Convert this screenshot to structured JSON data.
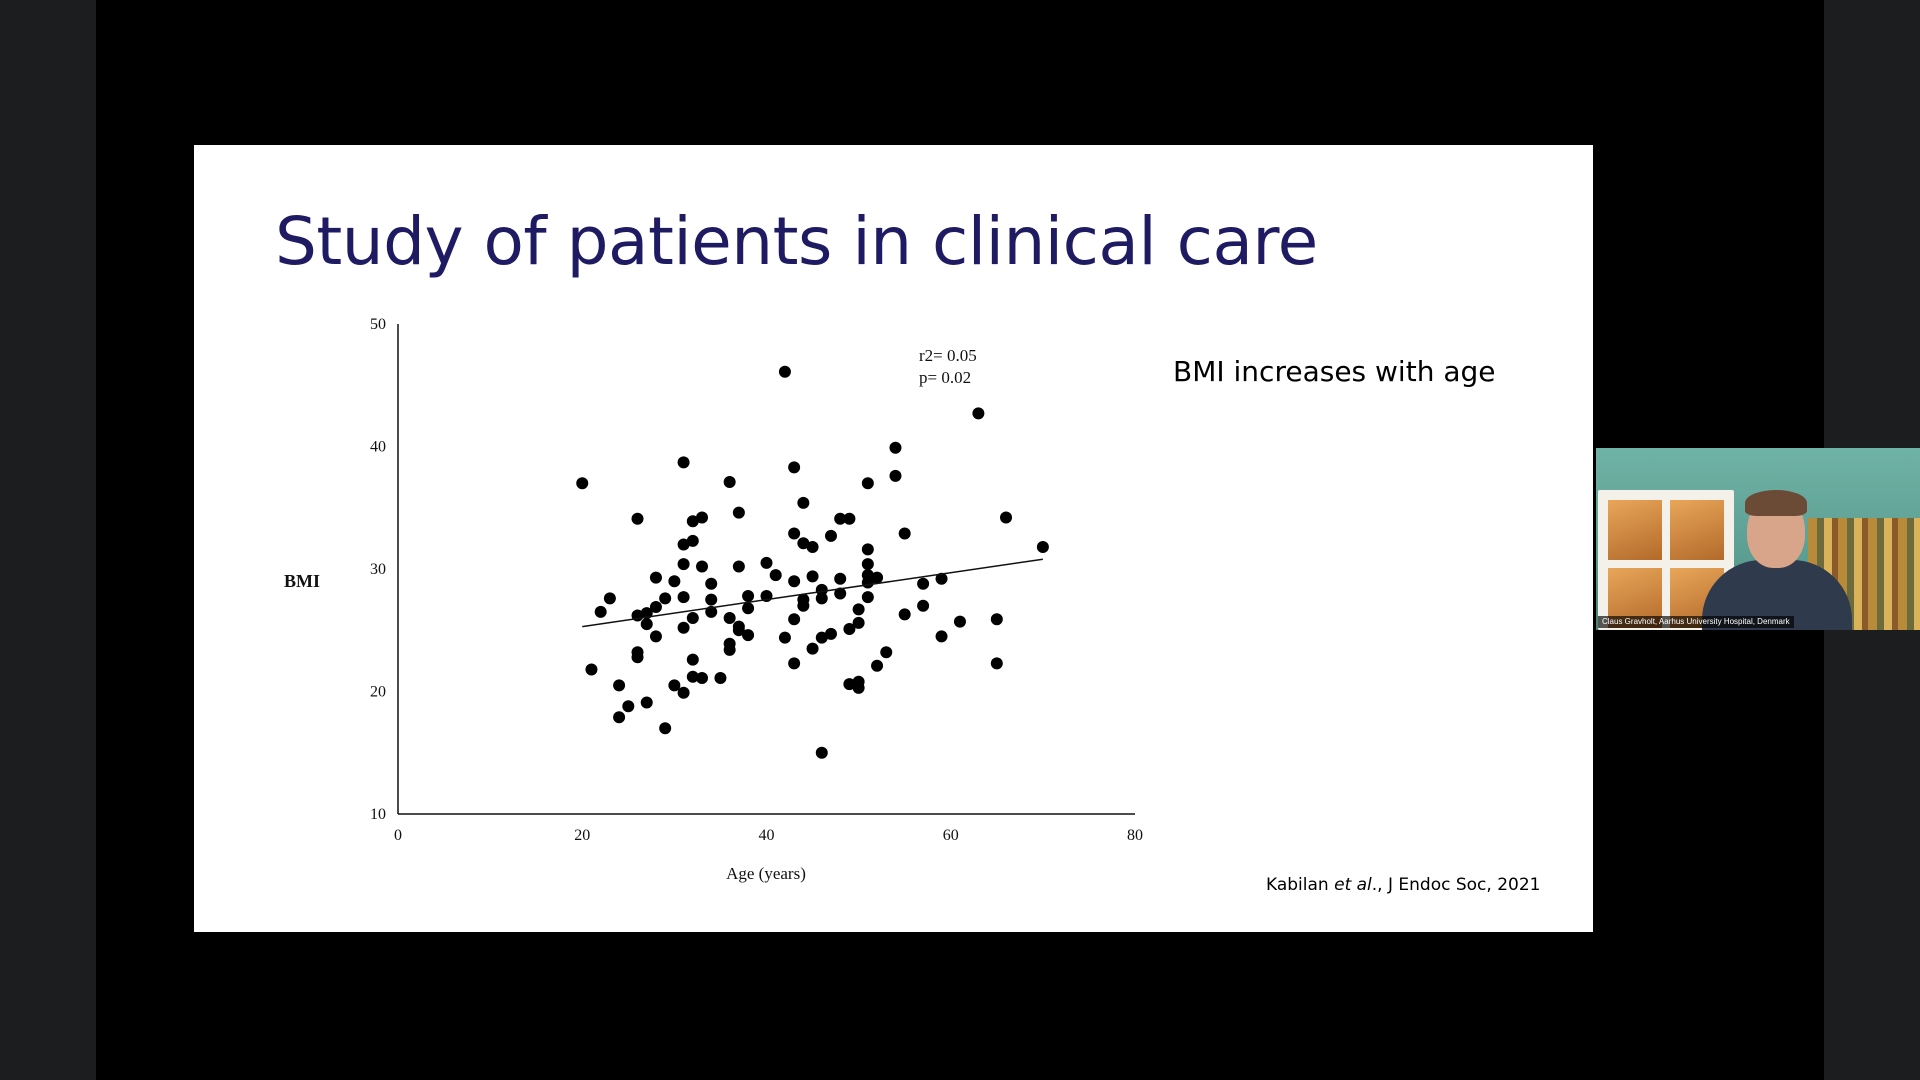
{
  "slide": {
    "title": "Study of patients in clinical care",
    "note": "BMI increases with age",
    "citation": {
      "author": "Kabilan ",
      "etal": "et al",
      "rest": "., J Endoc Soc, 2021"
    }
  },
  "chart_data": {
    "type": "scatter",
    "title": "",
    "xlabel": "Age (years)",
    "ylabel": "BMI",
    "xlim": [
      0,
      80
    ],
    "ylim": [
      10,
      50
    ],
    "xticks": [
      "0",
      "20",
      "40",
      "60",
      "80"
    ],
    "yticks": [
      "10",
      "20",
      "30",
      "40",
      "50"
    ],
    "grid": false,
    "annotations": [
      "r2= 0.05",
      "p= 0.02"
    ],
    "trendline": {
      "x": [
        20,
        70
      ],
      "y": [
        25.3,
        30.8
      ]
    },
    "points": [
      [
        20,
        37
      ],
      [
        21,
        21.8
      ],
      [
        22,
        26.5
      ],
      [
        23,
        27.6
      ],
      [
        24,
        17.9
      ],
      [
        24,
        20.5
      ],
      [
        25,
        18.8
      ],
      [
        26,
        34.1
      ],
      [
        26,
        22.8
      ],
      [
        26,
        23.2
      ],
      [
        26,
        26.2
      ],
      [
        27,
        26.4
      ],
      [
        27,
        25.5
      ],
      [
        27,
        19.1
      ],
      [
        28,
        29.3
      ],
      [
        28,
        26.9
      ],
      [
        28,
        24.5
      ],
      [
        29,
        17
      ],
      [
        29,
        27.6
      ],
      [
        30,
        29
      ],
      [
        30,
        20.5
      ],
      [
        31,
        38.7
      ],
      [
        31,
        32
      ],
      [
        31,
        30.4
      ],
      [
        31,
        27.7
      ],
      [
        31,
        25.2
      ],
      [
        31,
        19.9
      ],
      [
        32,
        33.9
      ],
      [
        32,
        32.3
      ],
      [
        32,
        26
      ],
      [
        32,
        22.6
      ],
      [
        32,
        21.2
      ],
      [
        33,
        34.2
      ],
      [
        33,
        30.2
      ],
      [
        33,
        21.1
      ],
      [
        34,
        28.8
      ],
      [
        34,
        27.5
      ],
      [
        34,
        26.5
      ],
      [
        35,
        21.1
      ],
      [
        36,
        37.1
      ],
      [
        36,
        26
      ],
      [
        36,
        23.9
      ],
      [
        36,
        23.4
      ],
      [
        37,
        34.6
      ],
      [
        37,
        30.2
      ],
      [
        37,
        25.3
      ],
      [
        37,
        25
      ],
      [
        38,
        27.8
      ],
      [
        38,
        24.6
      ],
      [
        38,
        26.8
      ],
      [
        40,
        30.5
      ],
      [
        40,
        27.8
      ],
      [
        41,
        29.5
      ],
      [
        42,
        46.1
      ],
      [
        42,
        24.4
      ],
      [
        43,
        38.3
      ],
      [
        43,
        32.9
      ],
      [
        43,
        29
      ],
      [
        43,
        25.9
      ],
      [
        43,
        22.3
      ],
      [
        44,
        35.4
      ],
      [
        44,
        32.1
      ],
      [
        44,
        27.5
      ],
      [
        44,
        27
      ],
      [
        45,
        31.8
      ],
      [
        45,
        29.4
      ],
      [
        45,
        23.5
      ],
      [
        46,
        28.3
      ],
      [
        46,
        27.6
      ],
      [
        46,
        24.4
      ],
      [
        46,
        15
      ],
      [
        47,
        32.7
      ],
      [
        47,
        24.7
      ],
      [
        48,
        34.1
      ],
      [
        48,
        29.2
      ],
      [
        48,
        28
      ],
      [
        49,
        34.1
      ],
      [
        49,
        25.1
      ],
      [
        49,
        20.6
      ],
      [
        50,
        26.7
      ],
      [
        50,
        25.6
      ],
      [
        50,
        20.8
      ],
      [
        50,
        20.3
      ],
      [
        51,
        37
      ],
      [
        51,
        31.6
      ],
      [
        51,
        30.4
      ],
      [
        51,
        29.5
      ],
      [
        51,
        28.9
      ],
      [
        51,
        27.7
      ],
      [
        52,
        29.3
      ],
      [
        52,
        22.1
      ],
      [
        53,
        23.2
      ],
      [
        54,
        39.9
      ],
      [
        54,
        37.6
      ],
      [
        55,
        32.9
      ],
      [
        55,
        26.3
      ],
      [
        57,
        28.8
      ],
      [
        57,
        27
      ],
      [
        59,
        29.2
      ],
      [
        59,
        24.5
      ],
      [
        61,
        25.7
      ],
      [
        63,
        42.7
      ],
      [
        65,
        25.9
      ],
      [
        65,
        22.3
      ],
      [
        66,
        34.2
      ],
      [
        70,
        31.8
      ]
    ]
  },
  "video_tile": {
    "participant_label": "Claus Gravholt, Aarhus University Hospital, Denmark"
  }
}
